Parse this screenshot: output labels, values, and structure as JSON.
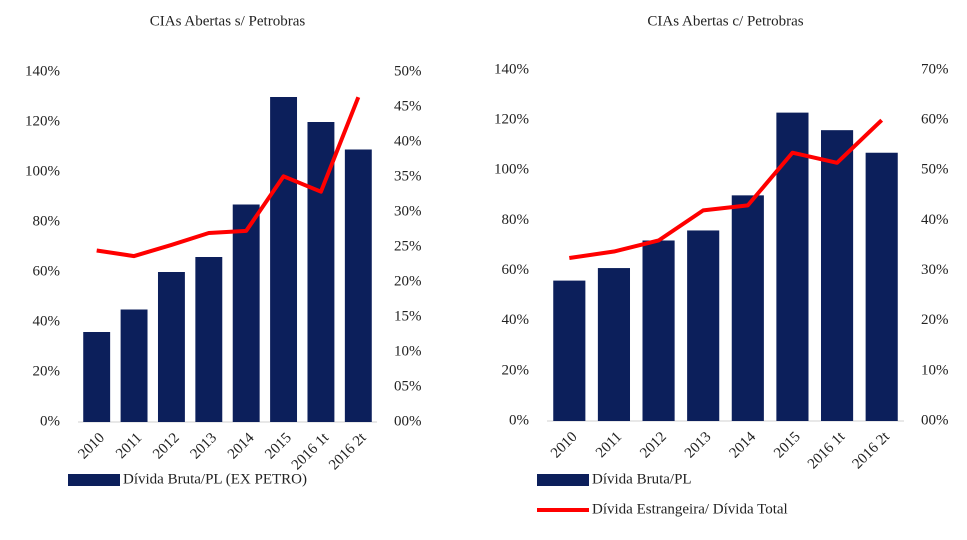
{
  "chart_data": [
    {
      "type": "bar_line",
      "title": "CIAs Abertas s/ Petrobras",
      "categories": [
        "2010",
        "2011",
        "2012",
        "2013",
        "2014",
        "2015",
        "2016 1t",
        "2016 2t"
      ],
      "series": [
        {
          "name": "Dívida Bruta/PL (EX PETRO)",
          "kind": "bar",
          "color": "#0c1f5b",
          "values": [
            36,
            45,
            60,
            66,
            87,
            130,
            120,
            109
          ]
        },
        {
          "kind": "line",
          "axis": "y2",
          "color": "#ff0000",
          "values": [
            24.5,
            23.7,
            25.3,
            27,
            27.3,
            35.1,
            32.9,
            46.4
          ]
        }
      ],
      "ylim": [
        0,
        140
      ],
      "yticks": [
        {
          "value": 0,
          "label": "0%"
        },
        {
          "value": 20,
          "label": "20%"
        },
        {
          "value": 40,
          "label": "40%"
        },
        {
          "value": 60,
          "label": "60%"
        },
        {
          "value": 80,
          "label": "80%"
        },
        {
          "value": 100,
          "label": "100%"
        },
        {
          "value": 120,
          "label": "120%"
        },
        {
          "value": 140,
          "label": "140%"
        }
      ],
      "y2lim": [
        0,
        50
      ],
      "y2ticks": [
        {
          "value": 0,
          "label": "00%"
        },
        {
          "value": 5,
          "label": "05%"
        },
        {
          "value": 10,
          "label": "10%"
        },
        {
          "value": 15,
          "label": "15%"
        },
        {
          "value": 20,
          "label": "20%"
        },
        {
          "value": 25,
          "label": "25%"
        },
        {
          "value": 30,
          "label": "30%"
        },
        {
          "value": 35,
          "label": "35%"
        },
        {
          "value": 40,
          "label": "40%"
        },
        {
          "value": 45,
          "label": "45%"
        },
        {
          "value": 50,
          "label": "50%"
        }
      ],
      "legend": "bottom"
    },
    {
      "type": "bar_line",
      "title": "CIAs Abertas c/ Petrobras",
      "categories": [
        "2010",
        "2011",
        "2012",
        "2013",
        "2014",
        "2015",
        "2016 1t",
        "2016 2t"
      ],
      "series": [
        {
          "name": "Dívida Bruta/PL",
          "kind": "bar",
          "color": "#0c1f5b",
          "values": [
            56,
            61,
            72,
            76,
            90,
            123,
            116,
            107
          ]
        },
        {
          "name": "Dívida Estrangeira/ Dívida Total",
          "kind": "line",
          "axis": "y2",
          "color": "#ff0000",
          "values": [
            32.5,
            33.8,
            36,
            42,
            43,
            53.5,
            51.5,
            60
          ]
        }
      ],
      "ylim": [
        0,
        140
      ],
      "yticks": [
        {
          "value": 0,
          "label": "0%"
        },
        {
          "value": 20,
          "label": "20%"
        },
        {
          "value": 40,
          "label": "40%"
        },
        {
          "value": 60,
          "label": "60%"
        },
        {
          "value": 80,
          "label": "80%"
        },
        {
          "value": 100,
          "label": "100%"
        },
        {
          "value": 120,
          "label": "120%"
        },
        {
          "value": 140,
          "label": "140%"
        }
      ],
      "y2lim": [
        0,
        70
      ],
      "y2ticks": [
        {
          "value": 0,
          "label": "00%"
        },
        {
          "value": 10,
          "label": "10%"
        },
        {
          "value": 20,
          "label": "20%"
        },
        {
          "value": 30,
          "label": "30%"
        },
        {
          "value": 40,
          "label": "40%"
        },
        {
          "value": 50,
          "label": "50%"
        },
        {
          "value": 60,
          "label": "60%"
        },
        {
          "value": 70,
          "label": "70%"
        }
      ],
      "legend": "bottom"
    }
  ]
}
